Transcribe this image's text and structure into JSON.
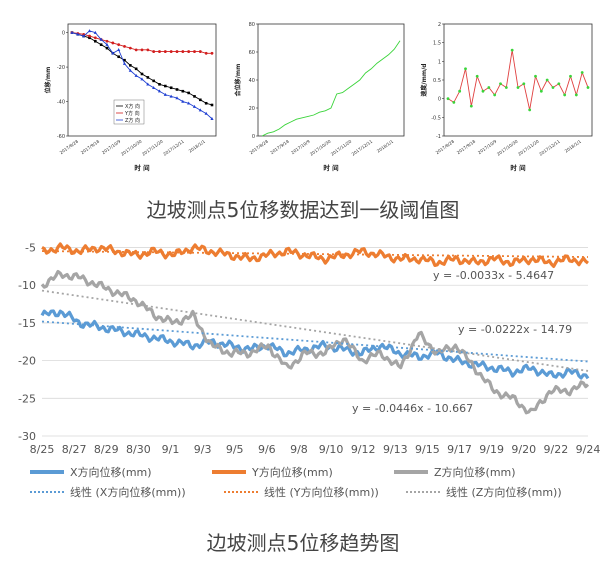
{
  "captions": {
    "top": "边坡测点5位移数据达到一级阈值图",
    "bottom": "边坡测点5位移趋势图"
  },
  "colors": {
    "x_series": "#5b9bd5",
    "y_series": "#ed7d31",
    "z_series": "#a5a5a5",
    "small_x": "#000000",
    "small_y": "#d21f1f",
    "small_z": "#1f3fd2",
    "small_total": "#3ad43a",
    "small_speed_line": "#e04040",
    "small_speed_point": "#3ad43a"
  },
  "chart_data": [
    {
      "type": "line",
      "id": "small-xyz",
      "ylabel": "位移/mm",
      "xlabel": "时 间",
      "ylim": [
        -60,
        5
      ],
      "yticks": [
        0,
        -20,
        -40,
        -60
      ],
      "x_tick_labels": [
        "2017/8/28",
        "2017/9/18",
        "2017/10/9",
        "2017/10/30",
        "2017/11/20",
        "2017/12/11",
        "2018/1/1"
      ],
      "legend": [
        "X方 向",
        "Y方 向",
        "Z方 向"
      ],
      "series": [
        {
          "name": "X方 向",
          "values": [
            0,
            -1,
            -2,
            -3,
            -5,
            -7,
            -9,
            -12,
            -14,
            -16,
            -19,
            -21,
            -24,
            -26,
            -28,
            -30,
            -31,
            -32,
            -33,
            -34,
            -35,
            -37,
            -39,
            -41,
            -42
          ]
        },
        {
          "name": "Y方 向",
          "values": [
            0,
            -0.5,
            -1,
            -2,
            -3,
            -4,
            -5,
            -6,
            -7,
            -8,
            -9,
            -10,
            -10,
            -10,
            -11,
            -11,
            -11,
            -11,
            -11,
            -11,
            -11,
            -11,
            -11,
            -12,
            -12
          ]
        },
        {
          "name": "Z方 向",
          "values": [
            0,
            -1,
            -2,
            1,
            0,
            -4,
            -7,
            -12,
            -10,
            -18,
            -22,
            -25,
            -27,
            -30,
            -32,
            -34,
            -36,
            -37,
            -38,
            -40,
            -41,
            -43,
            -45,
            -47,
            -50
          ]
        }
      ]
    },
    {
      "type": "line",
      "id": "small-total",
      "ylabel": "合位移/mm",
      "xlabel": "时 间",
      "ylim": [
        0,
        80
      ],
      "yticks": [
        0,
        20,
        40,
        60,
        80
      ],
      "x_tick_labels": [
        "2017/8/28",
        "2017/9/18",
        "2017/10/9",
        "2017/10/30",
        "2017/11/20",
        "2017/12/11",
        "2018/1/1"
      ],
      "series": [
        {
          "values": [
            0,
            2,
            3,
            5,
            8,
            10,
            12,
            13,
            14,
            15,
            17,
            18,
            20,
            30,
            31,
            34,
            37,
            40,
            45,
            48,
            52,
            55,
            58,
            62,
            68
          ]
        }
      ]
    },
    {
      "type": "line",
      "id": "small-speed",
      "ylabel": "速度/mm/d",
      "xlabel": "时 间",
      "ylim": [
        -1.0,
        2.0
      ],
      "yticks": [
        -1.0,
        -0.5,
        0.0,
        0.5,
        1.0,
        1.5,
        2.0
      ],
      "x_tick_labels": [
        "2017/8/28",
        "2017/9/18",
        "2017/10/9",
        "2017/10/30",
        "2017/11/20",
        "2017/12/11",
        "2018/1/1"
      ],
      "series": [
        {
          "values": [
            0.0,
            -0.1,
            0.2,
            0.8,
            -0.2,
            0.6,
            0.2,
            0.3,
            0.1,
            0.4,
            0.3,
            1.3,
            0.3,
            0.4,
            -0.3,
            0.6,
            0.2,
            0.5,
            0.3,
            0.4,
            0.1,
            0.6,
            0.1,
            0.7,
            0.3
          ]
        }
      ]
    },
    {
      "type": "line",
      "id": "trend",
      "ylim": [
        -30,
        -4
      ],
      "yticks": [
        -5,
        -10,
        -15,
        -20,
        -25,
        -30
      ],
      "x_tick_labels": [
        "8/25",
        "8/27",
        "8/29",
        "8/30",
        "9/1",
        "9/3",
        "9/5",
        "9/6",
        "9/8",
        "9/10",
        "9/12",
        "9/13",
        "9/15",
        "9/17",
        "9/19",
        "9/20",
        "9/22",
        "9/24"
      ],
      "series": [
        {
          "name": "X方向位移(mm)",
          "values": [
            -14.0,
            -13.5,
            -15.0,
            -15.5,
            -16.0,
            -16.5,
            -17.0,
            -17.5,
            -18.0,
            -17.5,
            -18.0,
            -18.5,
            -18.0,
            -19.0,
            -18.5,
            -18.0,
            -18.5,
            -19.0,
            -18.0,
            -19.0,
            -19.5,
            -19.0,
            -20.0,
            -20.5,
            -21.0,
            -21.5,
            -21.0,
            -22.0,
            -21.5,
            -22.0
          ]
        },
        {
          "name": "Y方向位移(mm)",
          "values": [
            -5.5,
            -5.0,
            -5.5,
            -5.0,
            -5.5,
            -6.0,
            -5.5,
            -6.0,
            -5.0,
            -5.5,
            -6.0,
            -6.5,
            -6.0,
            -5.5,
            -6.0,
            -6.5,
            -6.0,
            -5.5,
            -6.0,
            -6.5,
            -6.5,
            -7.0,
            -6.5,
            -7.0,
            -6.5,
            -7.0,
            -6.5,
            -7.0,
            -6.5,
            -7.0
          ]
        },
        {
          "name": "Z方向位移(mm)",
          "values": [
            -10.0,
            -8.5,
            -9.0,
            -10.0,
            -11.0,
            -12.0,
            -14.0,
            -15.0,
            -14.0,
            -18.0,
            -19.0,
            -19.0,
            -18.0,
            -21.0,
            -19.0,
            -19.0,
            -17.0,
            -20.0,
            -19.0,
            -21.0,
            -16.5,
            -19.0,
            -18.0,
            -21.0,
            -24.0,
            -25.0,
            -27.0,
            -24.0,
            -24.0,
            -23.0
          ]
        }
      ],
      "trendlines": [
        {
          "name": "线性 (X方向位移(mm))",
          "equation": "y = -0.0222x - 14.79",
          "slope": -0.0222,
          "intercept": -14.79
        },
        {
          "name": "线性 (Y方向位移(mm))",
          "equation": "y = -0.0033x - 5.4647",
          "slope": -0.0033,
          "intercept": -5.4647
        },
        {
          "name": "线性 (Z方向位移(mm))",
          "equation": "y = -0.0446x - 10.667",
          "slope": -0.0446,
          "intercept": -10.667
        }
      ]
    }
  ]
}
